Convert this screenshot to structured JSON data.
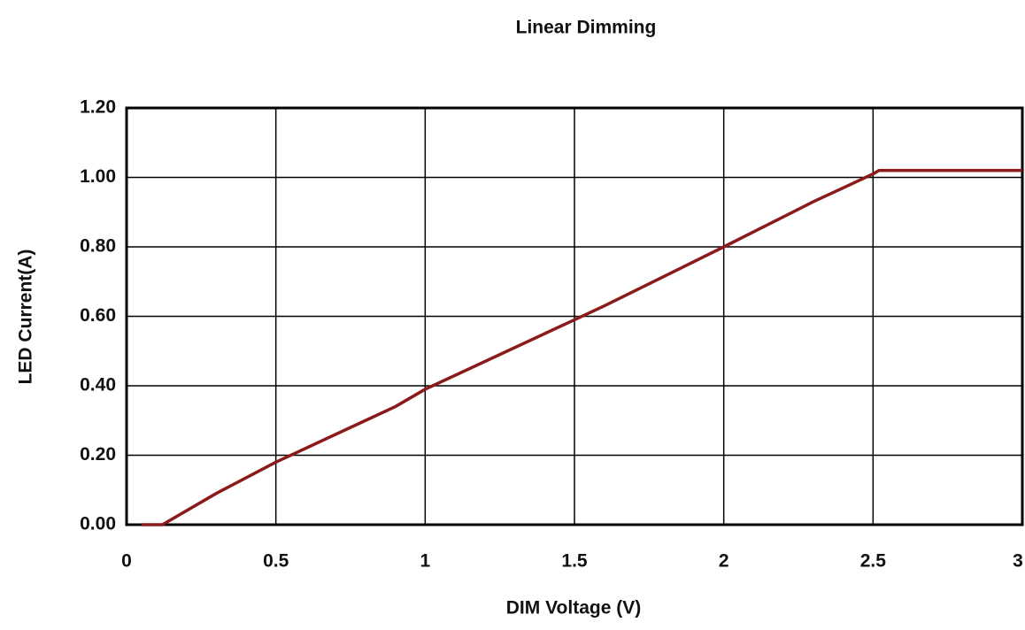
{
  "chart_data": {
    "type": "line",
    "title": "Linear Dimming",
    "x_label": "DIM Voltage (V)",
    "y_label": "LED Current(A)",
    "x": [
      0.05,
      0.1,
      0.12,
      0.3,
      0.5,
      0.8,
      0.9,
      1.0,
      1.5,
      1.6,
      2.0,
      2.3,
      2.4,
      2.5,
      2.52,
      3.0
    ],
    "series": [
      {
        "name": "LED Current",
        "color": "#8b1a1a",
        "values": [
          0,
          0,
          0,
          0.09,
          0.18,
          0.3,
          0.34,
          0.39,
          0.59,
          0.63,
          0.8,
          0.93,
          0.97,
          1.01,
          1.02,
          1.02
        ]
      }
    ],
    "xlim": [
      0,
      3
    ],
    "xticks": [
      0,
      0.5,
      1,
      1.5,
      2,
      2.5,
      3
    ],
    "ylim": [
      0,
      1.2
    ],
    "yticks": [
      {
        "value": 0,
        "label": "0.00"
      },
      {
        "value": 0.2,
        "label": "0.20"
      },
      {
        "value": 0.4,
        "label": "0.40"
      },
      {
        "value": 0.6,
        "label": "0.60"
      },
      {
        "value": 0.8,
        "label": "0.80"
      },
      {
        "value": 1.0,
        "label": "1.00"
      },
      {
        "value": 1.2,
        "label": "1.20"
      }
    ],
    "grid": true
  }
}
